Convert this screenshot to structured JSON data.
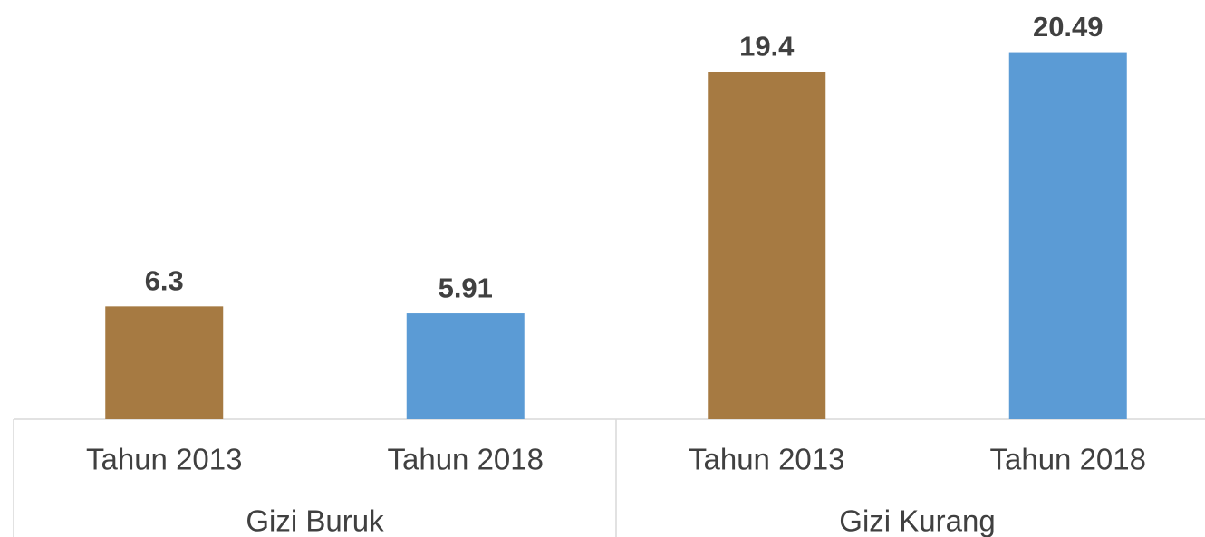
{
  "chart_data": {
    "type": "bar",
    "categories": [
      "Tahun 2013",
      "Tahun 2018",
      "Tahun 2013",
      "Tahun 2018"
    ],
    "groups": [
      "Gizi Buruk",
      "Gizi Kurang"
    ],
    "values": [
      6.3,
      5.91,
      19.4,
      20.49
    ],
    "colors": [
      "#a67a42",
      "#5b9bd5",
      "#a67a42",
      "#5b9bd5"
    ],
    "ylim": [
      0,
      23.4
    ]
  }
}
